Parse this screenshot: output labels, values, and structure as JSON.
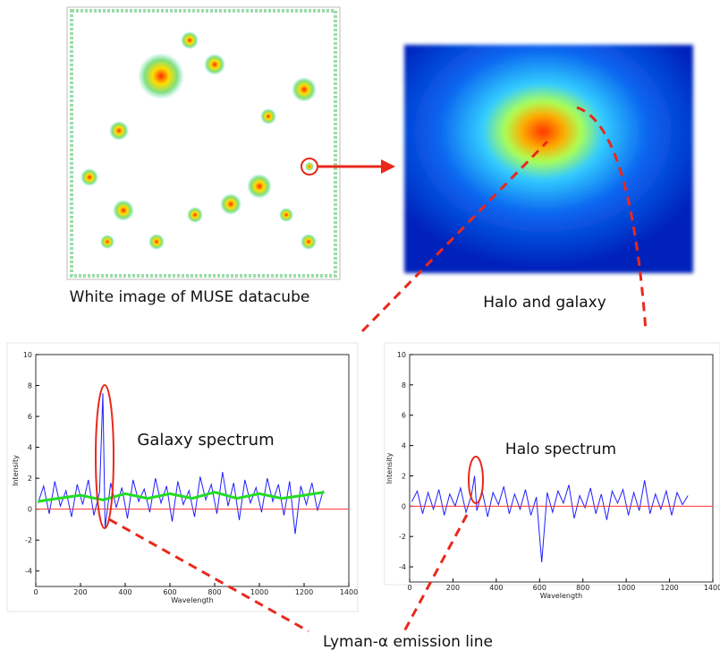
{
  "captions": {
    "white_image": "White image of MUSE datacube",
    "halo_image": "Halo and galaxy",
    "lyman_line": "Lyman-α emission line"
  },
  "chart_data": [
    {
      "type": "line",
      "annotation": "Galaxy spectrum",
      "xlabel": "Wavelength",
      "ylabel": "Intensity",
      "xlim": [
        0,
        1400
      ],
      "xticks": [
        0,
        200,
        400,
        600,
        800,
        1000,
        1200,
        1400
      ],
      "ylim": [
        -5,
        10
      ],
      "yticks": [
        -4,
        -2,
        0,
        2,
        4,
        6,
        8,
        10
      ],
      "hline": 0,
      "hline_color": "#ff3333",
      "series": [
        {
          "color": "#1f1fff",
          "x": [
            10,
            35,
            60,
            85,
            110,
            135,
            160,
            185,
            210,
            235,
            260,
            285,
            300,
            310,
            335,
            360,
            385,
            410,
            435,
            460,
            485,
            510,
            535,
            560,
            585,
            610,
            635,
            660,
            685,
            710,
            735,
            760,
            785,
            810,
            835,
            860,
            885,
            910,
            935,
            960,
            985,
            1010,
            1035,
            1060,
            1085,
            1110,
            1135,
            1160,
            1185,
            1210,
            1235,
            1260,
            1285
          ],
          "values": [
            0.4,
            1.5,
            -0.3,
            1.8,
            0.2,
            1.2,
            -0.5,
            1.6,
            0.3,
            1.9,
            -0.4,
            1.1,
            7.5,
            -1.2,
            1.7,
            0.1,
            1.4,
            -0.6,
            1.9,
            0.5,
            1.3,
            -0.2,
            2.0,
            0.4,
            1.5,
            -0.8,
            1.8,
            0.3,
            1.2,
            -0.5,
            2.1,
            0.6,
            1.6,
            -0.3,
            2.4,
            0.2,
            1.7,
            -0.7,
            1.9,
            0.4,
            1.4,
            -0.2,
            2.0,
            0.5,
            1.6,
            -0.4,
            1.8,
            -1.6,
            1.5,
            0.3,
            1.7,
            -0.1,
            1.2
          ]
        },
        {
          "color": "#22dd22",
          "x": [
            10,
            100,
            200,
            300,
            400,
            500,
            600,
            700,
            800,
            900,
            1000,
            1100,
            1200,
            1290
          ],
          "values": [
            0.5,
            0.7,
            0.9,
            0.6,
            1.0,
            0.7,
            1.0,
            0.7,
            1.1,
            0.7,
            1.0,
            0.7,
            0.9,
            1.1
          ]
        }
      ]
    },
    {
      "type": "line",
      "annotation": "Halo spectrum",
      "xlabel": "Wavelength",
      "ylabel": "Intensity",
      "xlim": [
        0,
        1400
      ],
      "xticks": [
        0,
        200,
        400,
        600,
        800,
        1000,
        1200,
        1400
      ],
      "ylim": [
        -5,
        10
      ],
      "yticks": [
        -4,
        -2,
        0,
        2,
        4,
        6,
        8,
        10
      ],
      "hline": 0,
      "hline_color": "#ff3333",
      "series": [
        {
          "color": "#1f1fff",
          "x": [
            10,
            35,
            60,
            85,
            110,
            135,
            160,
            185,
            210,
            235,
            260,
            285,
            300,
            310,
            335,
            360,
            385,
            410,
            435,
            460,
            485,
            510,
            535,
            560,
            585,
            610,
            635,
            660,
            685,
            710,
            735,
            760,
            785,
            810,
            835,
            860,
            885,
            910,
            935,
            960,
            985,
            1010,
            1035,
            1060,
            1085,
            1110,
            1135,
            1160,
            1185,
            1210,
            1235,
            1260,
            1285
          ],
          "values": [
            0.3,
            1.0,
            -0.5,
            0.9,
            -0.2,
            1.1,
            -0.6,
            0.8,
            0.0,
            1.2,
            -0.4,
            0.7,
            2.0,
            -0.3,
            1.0,
            -0.7,
            0.9,
            0.1,
            1.3,
            -0.5,
            0.8,
            -0.2,
            1.1,
            -0.6,
            0.6,
            -3.7,
            0.9,
            -0.4,
            1.0,
            0.2,
            1.4,
            -0.8,
            0.7,
            -0.1,
            1.2,
            -0.5,
            0.8,
            -0.9,
            1.0,
            0.2,
            1.1,
            -0.6,
            0.9,
            -0.3,
            1.7,
            -0.5,
            0.8,
            -0.2,
            1.0,
            -0.6,
            0.9,
            0.1,
            0.7
          ]
        }
      ]
    }
  ]
}
